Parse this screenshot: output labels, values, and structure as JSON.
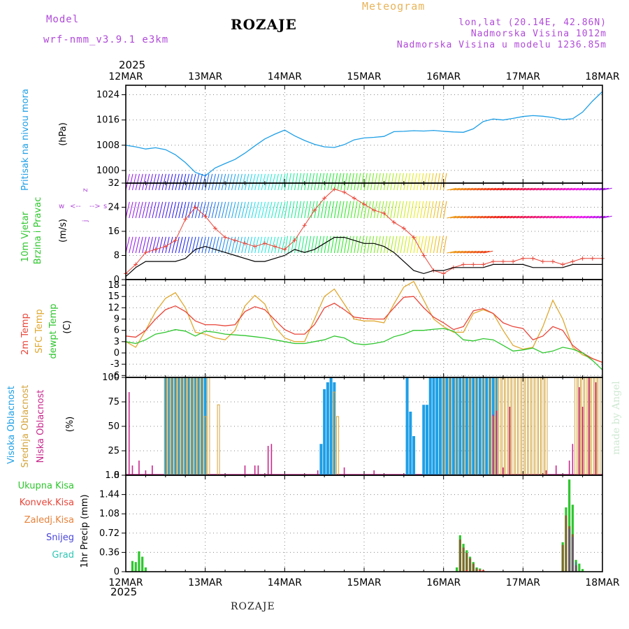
{
  "header": {
    "model_label": "Model",
    "model_name": "wrf-nmm_v3.9.1 e3km",
    "title": "ROZAJE",
    "product": "Meteogram",
    "coords": "lon,lat (20.14E, 42.86N)",
    "elevation": "Nadmorska Visina 1012m",
    "model_elevation": "Nadmorska Visina u modelu 1236.85m",
    "year_top": "2025",
    "year_bottom": "2025",
    "footer_station": "ROZAJE",
    "watermark": "made by Angel"
  },
  "colors": {
    "pressure": "#1e9fe6",
    "temp2m": "#e8463a",
    "sfc": "#e0a830",
    "dewpt": "#2ec62e",
    "high_cloud": "#1e9fe6",
    "mid_cloud": "#d4a43c",
    "low_cloud": "#c8288c",
    "total_precip": "#2ec62e",
    "conv_precip": "#e8463a",
    "grid_precip": "#e8823a",
    "snow": "#4a46d8",
    "hail": "#2ec6b4",
    "wind_label": "#2ec62e",
    "purple": "#b04ad8"
  },
  "x_ticks": [
    "12MAR",
    "13MAR",
    "14MAR",
    "15MAR",
    "16MAR",
    "17MAR",
    "18MAR"
  ],
  "chart_data": [
    {
      "type": "line",
      "name": "pressure",
      "ylabel": "Pritisak na nivou mora",
      "unit": "(hPa)",
      "ylim": [
        996,
        1027
      ],
      "yticks": [
        1000,
        1008,
        1016,
        1024
      ],
      "x_hours": [
        0,
        3,
        6,
        9,
        12,
        15,
        18,
        21,
        24,
        27,
        30,
        33,
        36,
        39,
        42,
        45,
        48,
        51,
        54,
        57,
        60,
        63,
        66,
        69,
        72,
        75,
        78,
        81,
        84,
        87,
        90,
        93,
        96,
        99,
        102,
        105,
        108,
        111,
        114,
        117,
        120,
        123,
        126,
        129,
        132,
        135,
        138,
        141,
        144
      ],
      "values": [
        1008,
        1007.5,
        1006.8,
        1007.2,
        1006.6,
        1005,
        1002.5,
        999.4,
        998.3,
        1000.8,
        1002.2,
        1003.5,
        1005.5,
        1007.8,
        1010,
        1011.5,
        1012.8,
        1011,
        1009.5,
        1008.3,
        1007.5,
        1007.3,
        1008.2,
        1009.7,
        1010.3,
        1010.5,
        1010.8,
        1012.3,
        1012.4,
        1012.6,
        1012.5,
        1012.7,
        1012.4,
        1012.2,
        1012.1,
        1013.2,
        1015.5,
        1016.3,
        1016,
        1016.5,
        1017.1,
        1017.4,
        1017.2,
        1016.8,
        1016.1,
        1016.4,
        1018.5,
        1022,
        1025
      ]
    },
    {
      "type": "line",
      "name": "wind",
      "ylabel": "10m Vjetar",
      "ylabel2": "Brzina i Pravac",
      "unit": "(m/s)",
      "compass_labels": [
        "w",
        "z",
        "s",
        "j",
        "<--",
        "-->"
      ],
      "ylim": [
        0,
        32
      ],
      "yticks": [
        0,
        8,
        16,
        24,
        32
      ],
      "x_hours": [
        0,
        3,
        6,
        9,
        12,
        15,
        18,
        21,
        24,
        27,
        30,
        33,
        36,
        39,
        42,
        45,
        48,
        51,
        54,
        57,
        60,
        63,
        66,
        69,
        72,
        75,
        78,
        81,
        84,
        87,
        90,
        93,
        96,
        99,
        102,
        105,
        108,
        111,
        114,
        117,
        120,
        123,
        126,
        129,
        132,
        135,
        138,
        141,
        144
      ],
      "gust": [
        2,
        5,
        9,
        10,
        11,
        13,
        20,
        24,
        21,
        17,
        14,
        13,
        12,
        11,
        12,
        11,
        10,
        13,
        18,
        23,
        27,
        30,
        29,
        27,
        25,
        23,
        22,
        19,
        17,
        14,
        8,
        3,
        2,
        4,
        5,
        5,
        5,
        6,
        6,
        6,
        7,
        7,
        6,
        6,
        5,
        6,
        7,
        7,
        7
      ],
      "speed": [
        1,
        4,
        6,
        6,
        6,
        6,
        7,
        10,
        11,
        10,
        9,
        8,
        7,
        6,
        6,
        7,
        8,
        10,
        9,
        10,
        12,
        14,
        14,
        13,
        12,
        12,
        11,
        9,
        6,
        3,
        2,
        3,
        3,
        4,
        4,
        4,
        4,
        5,
        5,
        5,
        5,
        4,
        4,
        4,
        4,
        5,
        5,
        5,
        5
      ]
    },
    {
      "type": "line",
      "name": "temperature",
      "ylabels": [
        "2m Temp",
        "SFC Temp",
        "dewpt Temp"
      ],
      "unit": "(C)",
      "ylim": [
        -6.5,
        19.5
      ],
      "yticks": [
        -6,
        -3,
        0,
        3,
        6,
        9,
        12,
        15,
        18
      ],
      "x_hours": [
        0,
        3,
        6,
        9,
        12,
        15,
        18,
        21,
        24,
        27,
        30,
        33,
        36,
        39,
        42,
        45,
        48,
        51,
        54,
        57,
        60,
        63,
        66,
        69,
        72,
        75,
        78,
        81,
        84,
        87,
        90,
        93,
        96,
        99,
        102,
        105,
        108,
        111,
        114,
        117,
        120,
        123,
        126,
        129,
        132,
        135,
        138,
        141,
        144
      ],
      "t2m": [
        4.5,
        4.2,
        6,
        9,
        11.5,
        12.5,
        11,
        8.5,
        7.5,
        7.5,
        7.2,
        7.5,
        11,
        12.3,
        11.5,
        8.8,
        6.2,
        5,
        5,
        7.5,
        12,
        13.2,
        11.5,
        9.5,
        9.2,
        9,
        9,
        12,
        14.8,
        15,
        12,
        9.5,
        8,
        6.2,
        7,
        11.2,
        11.8,
        10.5,
        8,
        7,
        6.5,
        3.5,
        4.5,
        7,
        6,
        2,
        0,
        -1.5,
        -2.5
      ],
      "sfc": [
        3,
        1.5,
        6,
        11,
        14.5,
        16,
        12,
        5.5,
        5,
        4,
        3.5,
        6,
        12.5,
        15.3,
        13,
        7,
        4,
        3,
        3,
        9,
        15,
        17,
        13,
        9,
        8.5,
        8.5,
        8,
        13,
        17.5,
        19,
        14,
        9,
        7,
        5.5,
        5.5,
        10.5,
        11.5,
        10.5,
        6,
        2,
        1,
        1.5,
        7,
        14,
        9,
        1.5,
        -0.5,
        -1.5,
        -2.5
      ],
      "dewpt": [
        3,
        2.5,
        3.5,
        5,
        5.5,
        6.2,
        5.8,
        4.5,
        5.8,
        5.5,
        5,
        4.8,
        4.6,
        4.3,
        4,
        3.5,
        3,
        2.5,
        2.5,
        3,
        3.5,
        4.5,
        4,
        2.5,
        2.2,
        2.5,
        3,
        4.3,
        5,
        6,
        6,
        6.3,
        6.5,
        5.8,
        3.5,
        3.2,
        3.8,
        3.5,
        2,
        0.5,
        0.8,
        1.3,
        0,
        0.5,
        1.5,
        1,
        0,
        -2,
        -4.5
      ]
    },
    {
      "type": "bar",
      "name": "cloud cover",
      "ylabels": [
        "Visoka Oblacnost",
        "Srednja Oblacnost",
        "Niska Oblacnost"
      ],
      "unit": "(%)",
      "ylim": [
        0,
        100
      ],
      "yticks": [
        0,
        25,
        50,
        75,
        100
      ],
      "high": [
        [
          12,
          100
        ],
        [
          13,
          100
        ],
        [
          14,
          100
        ],
        [
          15,
          100
        ],
        [
          16,
          100
        ],
        [
          17,
          100
        ],
        [
          18,
          100
        ],
        [
          19,
          100
        ],
        [
          20,
          100
        ],
        [
          21,
          100
        ],
        [
          22,
          100
        ],
        [
          23,
          100
        ],
        [
          24,
          100
        ],
        [
          59,
          32
        ],
        [
          60,
          88
        ],
        [
          61,
          95
        ],
        [
          62,
          100
        ],
        [
          63,
          95
        ],
        [
          85,
          100
        ],
        [
          86,
          65
        ],
        [
          87,
          40
        ],
        [
          90,
          72
        ],
        [
          91,
          72
        ],
        [
          92,
          100
        ],
        [
          93,
          100
        ],
        [
          94,
          100
        ],
        [
          95,
          100
        ],
        [
          96,
          100
        ],
        [
          97,
          100
        ],
        [
          98,
          100
        ],
        [
          99,
          100
        ],
        [
          100,
          100
        ],
        [
          101,
          100
        ],
        [
          102,
          100
        ],
        [
          103,
          100
        ],
        [
          104,
          100
        ],
        [
          105,
          100
        ],
        [
          106,
          100
        ],
        [
          107,
          100
        ],
        [
          108,
          100
        ],
        [
          109,
          100
        ],
        [
          110,
          100
        ],
        [
          111,
          100
        ],
        [
          112,
          100
        ]
      ],
      "mid": [
        [
          12,
          100
        ],
        [
          13,
          100
        ],
        [
          14,
          100
        ],
        [
          15,
          100
        ],
        [
          16,
          100
        ],
        [
          17,
          100
        ],
        [
          18,
          100
        ],
        [
          19,
          100
        ],
        [
          20,
          100
        ],
        [
          21,
          100
        ],
        [
          22,
          100
        ],
        [
          23,
          100
        ],
        [
          24,
          60
        ],
        [
          25,
          100
        ],
        [
          28,
          72
        ],
        [
          63,
          85
        ],
        [
          64,
          60
        ],
        [
          96,
          100
        ],
        [
          98,
          100
        ],
        [
          100,
          100
        ],
        [
          102,
          100
        ],
        [
          104,
          100
        ],
        [
          106,
          100
        ],
        [
          108,
          100
        ],
        [
          110,
          100
        ],
        [
          111,
          60
        ],
        [
          112,
          100
        ],
        [
          113,
          100
        ],
        [
          114,
          100
        ],
        [
          115,
          100
        ],
        [
          116,
          100
        ],
        [
          117,
          100
        ],
        [
          118,
          100
        ],
        [
          119,
          100
        ],
        [
          120,
          100
        ],
        [
          121,
          100
        ],
        [
          122,
          100
        ],
        [
          123,
          100
        ],
        [
          124,
          100
        ],
        [
          125,
          100
        ],
        [
          126,
          100
        ],
        [
          127,
          100
        ],
        [
          136,
          100
        ],
        [
          137,
          100
        ],
        [
          138,
          100
        ],
        [
          139,
          100
        ],
        [
          140,
          100
        ],
        [
          141,
          100
        ],
        [
          142,
          100
        ],
        [
          143,
          100
        ]
      ],
      "low": [
        [
          1,
          85
        ],
        [
          2,
          10
        ],
        [
          4,
          15
        ],
        [
          6,
          5
        ],
        [
          8,
          10
        ],
        [
          36,
          10
        ],
        [
          39,
          10
        ],
        [
          40,
          10
        ],
        [
          43,
          30
        ],
        [
          44,
          32
        ],
        [
          58,
          5
        ],
        [
          66,
          8
        ],
        [
          75,
          5
        ],
        [
          111,
          62
        ],
        [
          112,
          66
        ],
        [
          114,
          8
        ],
        [
          116,
          70
        ],
        [
          127,
          5
        ],
        [
          130,
          10
        ],
        [
          134,
          15
        ],
        [
          135,
          32
        ],
        [
          137,
          90
        ],
        [
          138,
          70
        ],
        [
          140,
          100
        ],
        [
          142,
          95
        ]
      ]
    },
    {
      "type": "bar",
      "name": "precipitation",
      "ylabel": "1hr Precip (mm)",
      "legend": [
        "Ukupna Kisa",
        "Konvek.Kisa",
        "Zaledj.Kisa",
        "Snijeg",
        "Grad"
      ],
      "ylim": [
        0,
        1.8
      ],
      "yticks": [
        0,
        0.36,
        0.72,
        1.08,
        1.44,
        1.8
      ],
      "total": [
        [
          2,
          0.2
        ],
        [
          3,
          0.18
        ],
        [
          4,
          0.38
        ],
        [
          5,
          0.28
        ],
        [
          6,
          0.08
        ],
        [
          100,
          0.08
        ],
        [
          101,
          0.68
        ],
        [
          102,
          0.52
        ],
        [
          103,
          0.4
        ],
        [
          104,
          0.28
        ],
        [
          105,
          0.18
        ],
        [
          106,
          0.08
        ],
        [
          107,
          0.06
        ],
        [
          108,
          0.03
        ],
        [
          132,
          0.55
        ],
        [
          133,
          1.2
        ],
        [
          134,
          1.72
        ],
        [
          135,
          1.25
        ],
        [
          136,
          0.22
        ],
        [
          137,
          0.15
        ],
        [
          138,
          0.05
        ]
      ],
      "grid": [
        [
          101,
          0.6
        ],
        [
          102,
          0.45
        ],
        [
          103,
          0.35
        ],
        [
          104,
          0.25
        ],
        [
          105,
          0.15
        ],
        [
          106,
          0.06
        ],
        [
          132,
          0.5
        ],
        [
          133,
          1.05
        ],
        [
          134,
          0.85
        ],
        [
          135,
          0.7
        ],
        [
          136,
          0.12
        ]
      ],
      "snow": [
        [
          134,
          0.8
        ],
        [
          135,
          0.65
        ],
        [
          136,
          0.18
        ]
      ],
      "conv": [
        [
          103,
          0.03
        ],
        [
          107,
          0.04
        ],
        [
          108,
          0.03
        ]
      ]
    }
  ]
}
